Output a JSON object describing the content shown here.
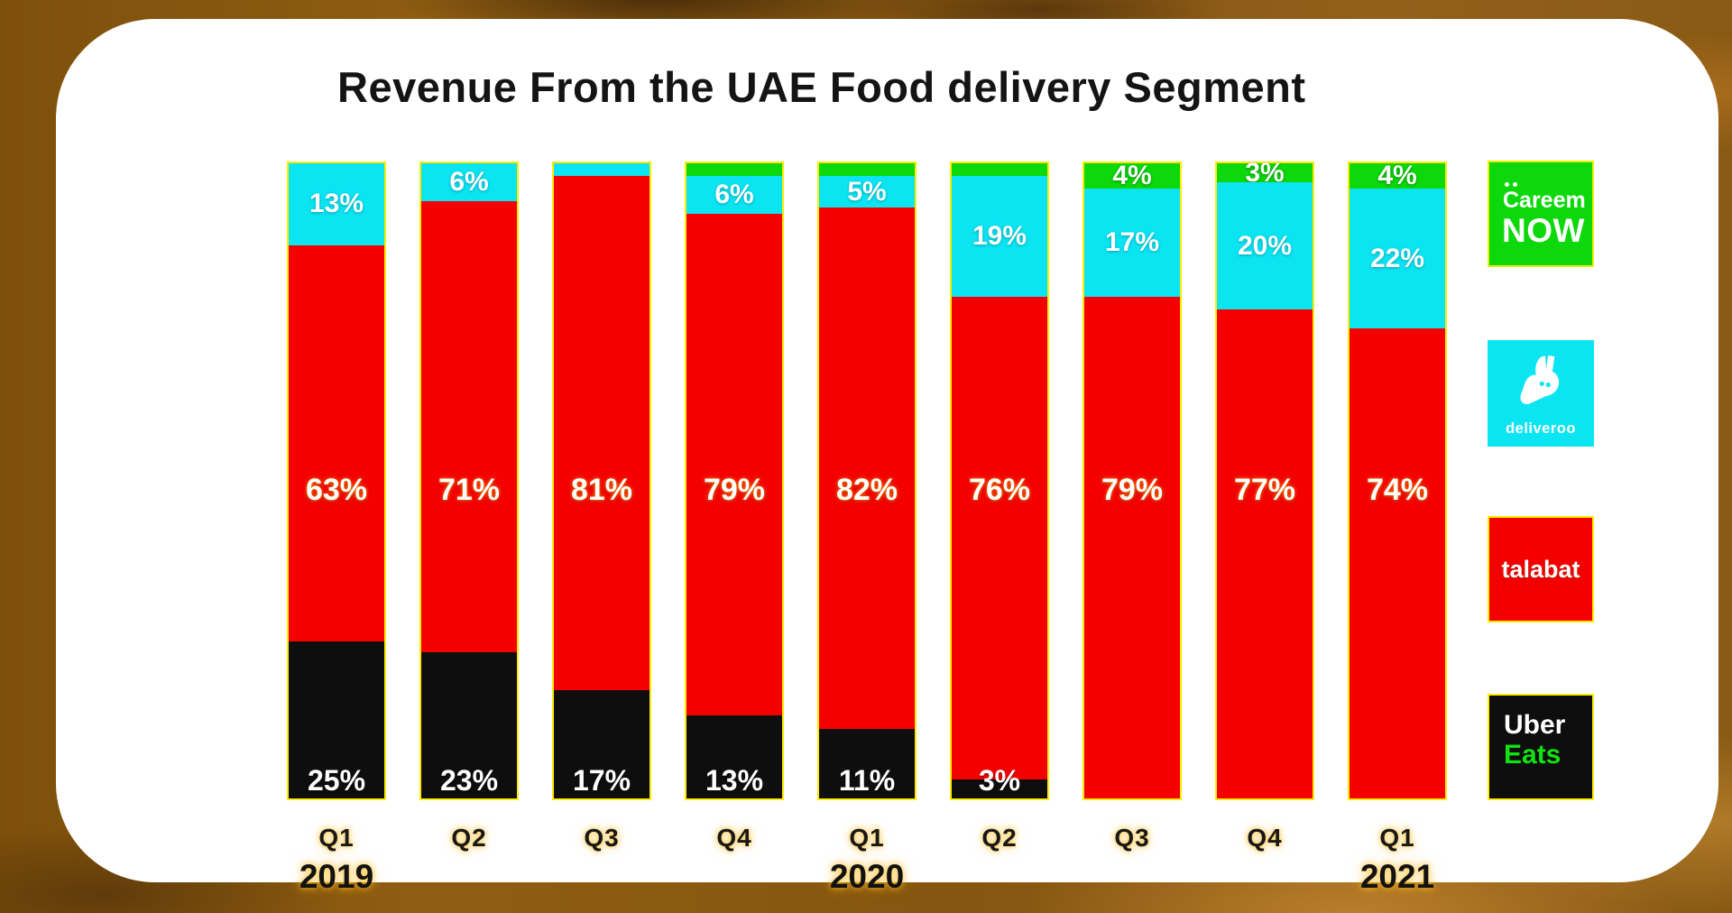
{
  "title": "Revenue From the UAE Food delivery Segment",
  "colors": {
    "careem_now": "#0cd80c",
    "deliveroo": "#0be5f2",
    "talabat": "#f40000",
    "uber_eats": "#0e0e0e",
    "bar_border": "#ffec00",
    "frame_brown": "#8a5a12",
    "card_white": "#ffffff",
    "uber_eats_green_text": "#12e212"
  },
  "chart_data": {
    "type": "bar",
    "subtype": "100pct-stacked-vertical",
    "title": "Revenue From the UAE Food delivery Segment",
    "unit": "%",
    "categories": [
      "Q1",
      "Q2",
      "Q3",
      "Q4",
      "Q1",
      "Q2",
      "Q3",
      "Q4",
      "Q1"
    ],
    "category_years": [
      "2019",
      "2019",
      "2019",
      "2019",
      "2020",
      "2020",
      "2020",
      "2020",
      "2021"
    ],
    "year_markers": [
      {
        "label": "2019",
        "under_category_index": 0
      },
      {
        "label": "2020",
        "under_category_index": 4
      },
      {
        "label": "2021",
        "under_category_index": 8
      }
    ],
    "stack_order_top_to_bottom": [
      "Careem NOW",
      "deliveroo",
      "talabat",
      "Uber Eats"
    ],
    "series": [
      {
        "name": "Careem NOW",
        "color_key": "careem_now",
        "values": [
          0,
          0,
          0,
          2,
          2,
          2,
          4,
          3,
          4
        ],
        "labels": [
          "",
          "",
          "",
          "",
          "",
          "",
          "4%",
          "3%",
          "4%"
        ]
      },
      {
        "name": "deliveroo",
        "color_key": "deliveroo",
        "values": [
          13,
          6,
          2,
          6,
          5,
          19,
          17,
          20,
          22
        ],
        "labels": [
          "13%",
          "6%",
          "",
          "6%",
          "5%",
          "19%",
          "17%",
          "20%",
          "22%"
        ]
      },
      {
        "name": "talabat",
        "color_key": "talabat",
        "values": [
          63,
          71,
          81,
          79,
          82,
          76,
          79,
          77,
          74
        ],
        "labels": [
          "63%",
          "71%",
          "81%",
          "79%",
          "82%",
          "76%",
          "79%",
          "77%",
          "74%"
        ]
      },
      {
        "name": "Uber Eats",
        "color_key": "uber_eats",
        "values": [
          25,
          23,
          17,
          13,
          11,
          3,
          0,
          0,
          0
        ],
        "labels": [
          "25%",
          "23%",
          "17%",
          "13%",
          "11%",
          "3%",
          "",
          "",
          ""
        ]
      }
    ],
    "legend_position": "right",
    "grid": false
  },
  "legend": {
    "careem": {
      "line1": "Careem",
      "line2": "NOW"
    },
    "deliveroo": {
      "word": "deliveroo"
    },
    "talabat": {
      "word": "talabat"
    },
    "uber": {
      "line1": "Uber",
      "line2": "Eats"
    }
  }
}
